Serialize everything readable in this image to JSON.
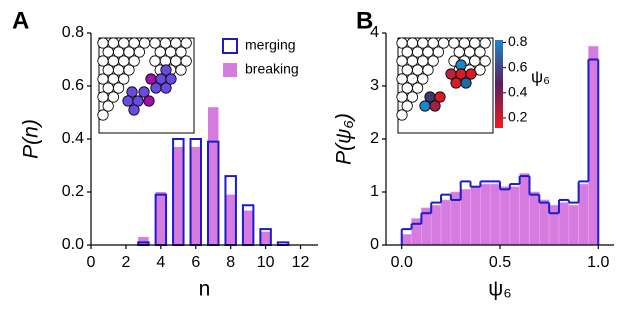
{
  "chart_data": [
    {
      "type": "bar",
      "panel_label": "A",
      "x_label": "n",
      "y_label": "P(n)",
      "x": [
        3,
        4,
        5,
        6,
        7,
        8,
        9,
        10,
        11
      ],
      "series": [
        {
          "name": "breaking",
          "color": "#d67be0",
          "fill": true,
          "values": [
            0.03,
            0.2,
            0.37,
            0.37,
            0.52,
            0.19,
            0.13,
            0.05,
            0.0
          ]
        },
        {
          "name": "merging",
          "color": "#1c1cc8",
          "fill": false,
          "values": [
            0.01,
            0.19,
            0.4,
            0.4,
            0.39,
            0.26,
            0.15,
            0.06,
            0.01
          ]
        }
      ],
      "bar_width": 0.6,
      "xlim": [
        0,
        13
      ],
      "xticks": [
        0,
        2,
        4,
        6,
        8,
        10,
        12
      ],
      "ylim": [
        0,
        0.8
      ],
      "yticks": [
        {
          "value": 0,
          "label": "0.0"
        },
        0.2,
        0.4,
        0.6,
        0.8
      ],
      "legend": "upper right"
    },
    {
      "type": "histogram",
      "panel_label": "B",
      "x_label": "ψ₆",
      "y_label": "P(ψ₆)",
      "bins": [
        0,
        0.05,
        0.1,
        0.15,
        0.2,
        0.25,
        0.3,
        0.35,
        0.4,
        0.45,
        0.5,
        0.55,
        0.6,
        0.65,
        0.7,
        0.75,
        0.8,
        0.85,
        0.9,
        0.95,
        1
      ],
      "series": [
        {
          "color": "#d67be0",
          "fill": true,
          "values": [
            0.2,
            0.5,
            0.7,
            0.75,
            0.85,
            1.0,
            1.05,
            1.1,
            1.15,
            1.15,
            1.1,
            1.1,
            1.35,
            1.0,
            0.85,
            0.75,
            0.8,
            0.75,
            1.15,
            3.75
          ]
        },
        {
          "color": "#1c1cc8",
          "fill": false,
          "values": [
            0.3,
            0.4,
            0.6,
            0.8,
            0.95,
            0.85,
            1.2,
            1.1,
            1.2,
            1.2,
            1.05,
            1.15,
            1.3,
            0.95,
            0.8,
            0.6,
            0.85,
            0.8,
            1.2,
            3.5
          ]
        }
      ],
      "xlim": [
        -0.08,
        1.08
      ],
      "xticks": [
        {
          "value": 0,
          "label": "0.0"
        },
        0.5,
        {
          "value": 1,
          "label": "1.0"
        }
      ],
      "ylim": [
        0,
        4
      ],
      "yticks": [
        0,
        1,
        2,
        3,
        4
      ],
      "colorbar": {
        "label": "ψ₆",
        "colors": [
          "#ee1c1c",
          "#5e1e60",
          "#1b86c8"
        ],
        "clim": [
          0.12,
          0.82
        ],
        "ticks": [
          0.2,
          0.4,
          0.6,
          0.8
        ]
      }
    }
  ]
}
